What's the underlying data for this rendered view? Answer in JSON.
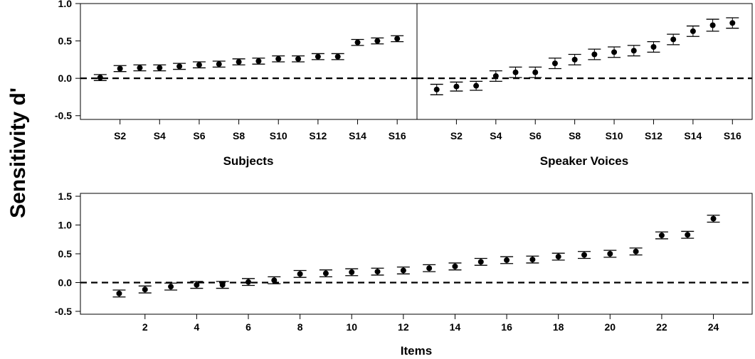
{
  "figure": {
    "ylabel": "Sensitivity d'"
  },
  "chart_data": [
    {
      "type": "scatter",
      "panel": "subjects",
      "xlabel": "Subjects",
      "ylabel": "Sensitivity d'",
      "ylim": [
        -0.55,
        1.0
      ],
      "yticks": [
        -0.5,
        0.0,
        0.5,
        1.0
      ],
      "ytick_labels": [
        "-0.5",
        "0.0",
        "0.5",
        "1.0"
      ],
      "x_range": [
        0,
        17
      ],
      "xticks": [
        2,
        4,
        6,
        8,
        10,
        12,
        14,
        16
      ],
      "xtick_labels": [
        "S2",
        "S4",
        "S6",
        "S8",
        "S10",
        "S12",
        "S14",
        "S16"
      ],
      "reference_line": 0,
      "x": [
        1,
        2,
        3,
        4,
        5,
        6,
        7,
        8,
        9,
        10,
        11,
        12,
        13,
        14,
        15,
        16
      ],
      "values": [
        0.01,
        0.13,
        0.14,
        0.14,
        0.16,
        0.18,
        0.19,
        0.22,
        0.23,
        0.26,
        0.26,
        0.29,
        0.29,
        0.48,
        0.5,
        0.53
      ],
      "error_low": [
        -0.03,
        0.09,
        0.1,
        0.1,
        0.12,
        0.14,
        0.15,
        0.18,
        0.19,
        0.22,
        0.22,
        0.25,
        0.25,
        0.44,
        0.46,
        0.49
      ],
      "error_high": [
        0.05,
        0.17,
        0.18,
        0.18,
        0.2,
        0.22,
        0.23,
        0.26,
        0.27,
        0.3,
        0.3,
        0.33,
        0.33,
        0.52,
        0.54,
        0.57
      ],
      "color": "#000000"
    },
    {
      "type": "scatter",
      "panel": "speakers",
      "xlabel": "Speaker Voices",
      "ylim": [
        -0.55,
        1.0
      ],
      "x_range": [
        0,
        17
      ],
      "xticks": [
        2,
        4,
        6,
        8,
        10,
        12,
        14,
        16
      ],
      "xtick_labels": [
        "S2",
        "S4",
        "S6",
        "S8",
        "S10",
        "S12",
        "S14",
        "S16"
      ],
      "reference_line": 0,
      "x": [
        1,
        2,
        3,
        4,
        5,
        6,
        7,
        8,
        9,
        10,
        11,
        12,
        13,
        14,
        15,
        16
      ],
      "values": [
        -0.15,
        -0.11,
        -0.1,
        0.03,
        0.08,
        0.08,
        0.2,
        0.25,
        0.32,
        0.35,
        0.37,
        0.42,
        0.52,
        0.63,
        0.71,
        0.74
      ],
      "error_low": [
        -0.22,
        -0.17,
        -0.16,
        -0.04,
        0.01,
        0.01,
        0.13,
        0.18,
        0.25,
        0.28,
        0.3,
        0.35,
        0.45,
        0.56,
        0.63,
        0.67
      ],
      "error_high": [
        -0.08,
        -0.05,
        -0.04,
        0.1,
        0.15,
        0.15,
        0.27,
        0.32,
        0.39,
        0.42,
        0.44,
        0.49,
        0.59,
        0.7,
        0.79,
        0.81
      ],
      "color": "#000000"
    },
    {
      "type": "scatter",
      "panel": "items",
      "xlabel": "Items",
      "ylim": [
        -0.55,
        1.55
      ],
      "yticks": [
        -0.5,
        0.0,
        0.5,
        1.0,
        1.5
      ],
      "ytick_labels": [
        "-0.5",
        "0.0",
        "0.5",
        "1.0",
        "1.5"
      ],
      "x_range": [
        -0.5,
        25.5
      ],
      "xticks": [
        2,
        4,
        6,
        8,
        10,
        12,
        14,
        16,
        18,
        20,
        22,
        24
      ],
      "xtick_labels": [
        "2",
        "4",
        "6",
        "8",
        "10",
        "12",
        "14",
        "16",
        "18",
        "20",
        "22",
        "24"
      ],
      "reference_line": 0,
      "x": [
        1,
        2,
        3,
        4,
        5,
        6,
        7,
        8,
        9,
        10,
        11,
        12,
        13,
        14,
        15,
        16,
        17,
        18,
        19,
        20,
        21,
        22,
        23,
        24
      ],
      "values": [
        -0.19,
        -0.12,
        -0.07,
        -0.04,
        -0.04,
        0.01,
        0.04,
        0.15,
        0.16,
        0.18,
        0.19,
        0.21,
        0.25,
        0.28,
        0.36,
        0.39,
        0.4,
        0.45,
        0.48,
        0.5,
        0.54,
        0.82,
        0.83,
        1.11
      ],
      "error_low": [
        -0.25,
        -0.18,
        -0.13,
        -0.1,
        -0.1,
        -0.05,
        -0.02,
        0.09,
        0.1,
        0.12,
        0.13,
        0.15,
        0.19,
        0.22,
        0.3,
        0.33,
        0.34,
        0.39,
        0.42,
        0.44,
        0.48,
        0.76,
        0.77,
        1.05
      ],
      "error_high": [
        -0.13,
        -0.06,
        -0.01,
        0.02,
        0.02,
        0.07,
        0.1,
        0.21,
        0.22,
        0.24,
        0.25,
        0.27,
        0.31,
        0.34,
        0.42,
        0.45,
        0.46,
        0.51,
        0.54,
        0.56,
        0.6,
        0.88,
        0.89,
        1.17
      ],
      "color": "#000000"
    }
  ]
}
